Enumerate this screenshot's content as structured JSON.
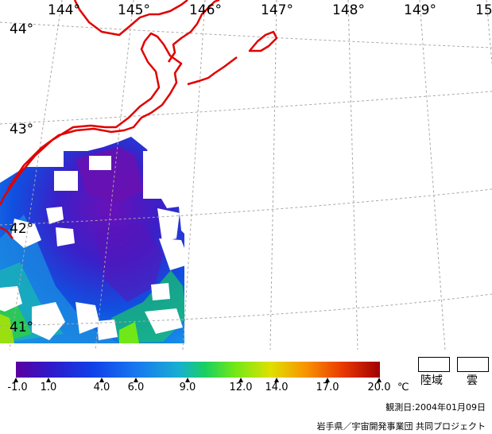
{
  "map": {
    "lon_labels": [
      "144°",
      "145°",
      "146°",
      "147°",
      "148°",
      "149°",
      "15"
    ],
    "lat_labels": [
      "44°",
      "43°",
      "42°",
      "41°"
    ],
    "colors": {
      "coastline": "#e00000",
      "grid": "#b0b0b0",
      "cloud": "#ffffff"
    }
  },
  "colorbar": {
    "ticks": [
      "-1.0",
      "1.0",
      "4.0",
      "6.0",
      "9.0",
      "12.0",
      "14.0",
      "17.0",
      "20.0"
    ],
    "unit": "℃",
    "stops": [
      "#5b00a0",
      "#3018c8",
      "#1040e8",
      "#1878f0",
      "#18b0d0",
      "#18d060",
      "#70e818",
      "#e0e000",
      "#f89000",
      "#e83800",
      "#a00000"
    ]
  },
  "legend": {
    "land": "陸域",
    "cloud": "雲"
  },
  "observation_date": "観測日:2004年01月09日",
  "credit": "岩手県／宇宙開発事業団 共同プロジェクト"
}
